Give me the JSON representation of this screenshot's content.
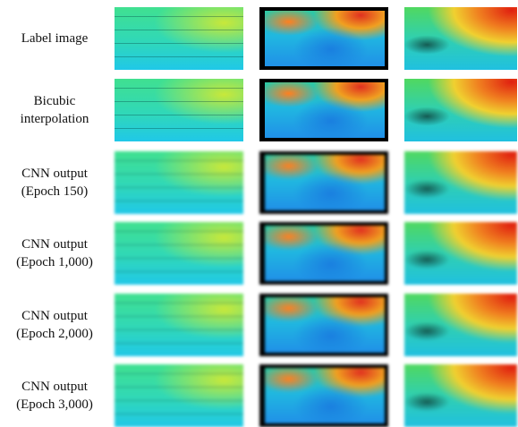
{
  "figure": {
    "rows": [
      {
        "lines": [
          "Label image"
        ]
      },
      {
        "lines": [
          "Bicubic",
          "interpolation"
        ]
      },
      {
        "lines": [
          "CNN output",
          "(Epoch 150)"
        ]
      },
      {
        "lines": [
          "CNN output",
          "(Epoch 1,000)"
        ]
      },
      {
        "lines": [
          "CNN output",
          "(Epoch 2,000)"
        ]
      },
      {
        "lines": [
          "CNN output",
          "(Epoch 3,000)"
        ]
      }
    ]
  }
}
